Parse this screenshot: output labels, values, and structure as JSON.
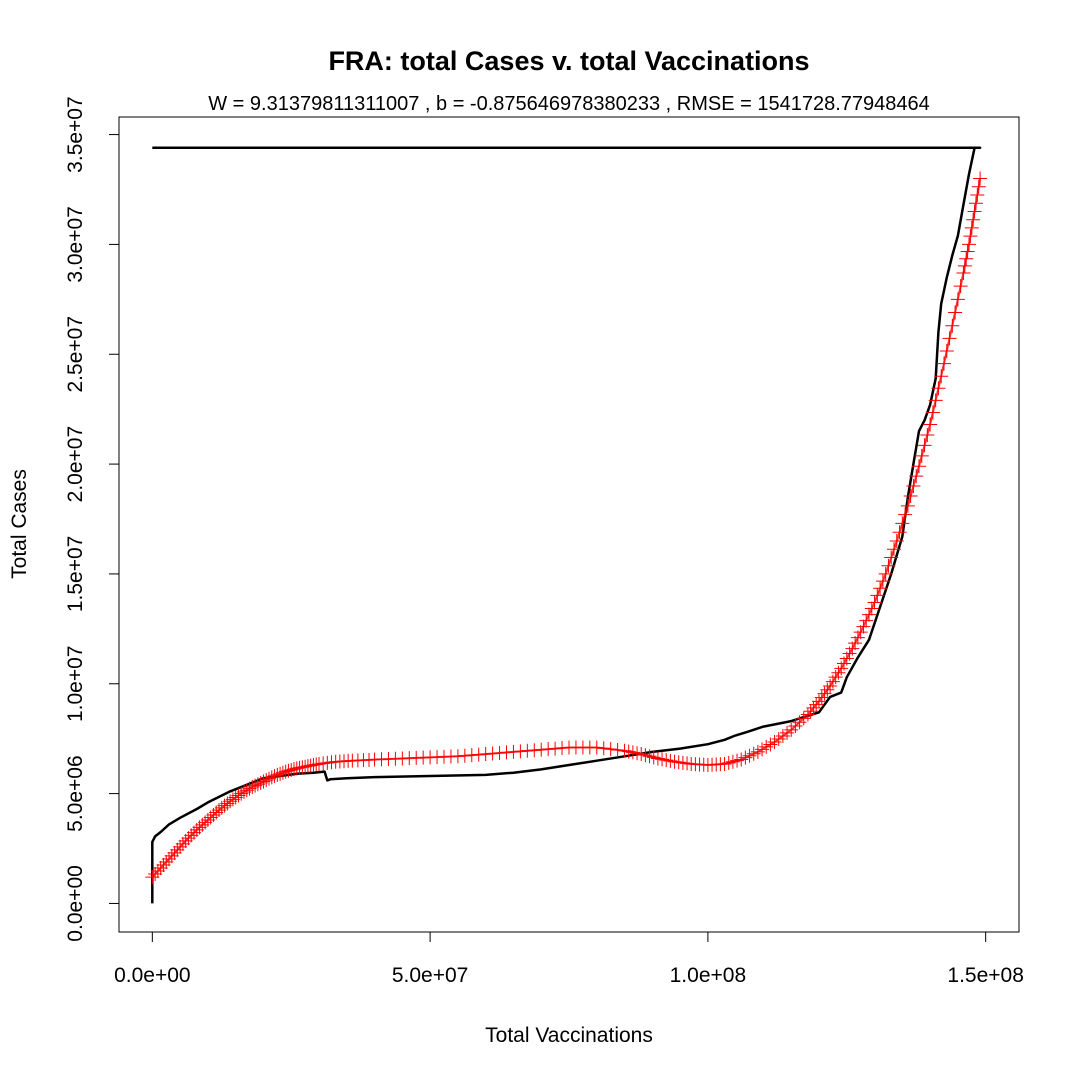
{
  "chart_data": {
    "type": "line",
    "title": "FRA: total Cases v. total Vaccinations",
    "subtitle": "W = 9.31379811311007 , b = -0.875646978380233 , RMSE = 1541728.77948464",
    "xlabel": "Total Vaccinations",
    "ylabel": "Total Cases",
    "xlim": [
      -6000000,
      156000000
    ],
    "ylim": [
      -1300000,
      35800000
    ],
    "x_ticks": [
      {
        "value": 0,
        "label": "0.0e+00"
      },
      {
        "value": 50000000,
        "label": "5.0e+07"
      },
      {
        "value": 100000000,
        "label": "1.0e+08"
      },
      {
        "value": 150000000,
        "label": "1.5e+08"
      }
    ],
    "y_ticks": [
      {
        "value": 0,
        "label": "0.0e+00"
      },
      {
        "value": 5000000,
        "label": "5.0e+06"
      },
      {
        "value": 10000000,
        "label": "1.0e+07"
      },
      {
        "value": 15000000,
        "label": "1.5e+07"
      },
      {
        "value": 20000000,
        "label": "2.0e+07"
      },
      {
        "value": 25000000,
        "label": "2.5e+07"
      },
      {
        "value": 30000000,
        "label": "3.0e+07"
      },
      {
        "value": 35000000,
        "label": "3.5e+07"
      }
    ],
    "grid": false,
    "legend": "none",
    "series": [
      {
        "color": "#000000",
        "style": "line",
        "x": [
          0,
          0,
          500000,
          1500000,
          3000000,
          5000000,
          8000000,
          10000000,
          14000000,
          17000000,
          20000000,
          23000000,
          26000000,
          29000000,
          31000000,
          31500000,
          32000000,
          35000000,
          40000000,
          50000000,
          60000000,
          65000000,
          70000000,
          75000000,
          80000000,
          85000000,
          90000000,
          95000000,
          100000000,
          103000000,
          105000000,
          107000000,
          110000000,
          115000000,
          120000000,
          122000000,
          124000000,
          125000000,
          127000000,
          129000000,
          131000000,
          133000000,
          135000000,
          136000000,
          137000000,
          138000000,
          139000000,
          140000000,
          141000000,
          141500000,
          142000000,
          143000000,
          144000000,
          145000000,
          146000000,
          147000000,
          148000000,
          149000000,
          0
        ],
        "y": [
          0,
          2800000,
          3050000,
          3250000,
          3600000,
          3900000,
          4300000,
          4600000,
          5100000,
          5400000,
          5700000,
          5800000,
          5900000,
          5950000,
          6000000,
          5600000,
          5650000,
          5700000,
          5750000,
          5800000,
          5850000,
          5950000,
          6100000,
          6300000,
          6500000,
          6700000,
          6900000,
          7050000,
          7250000,
          7450000,
          7650000,
          7800000,
          8050000,
          8300000,
          8700000,
          9400000,
          9600000,
          10300000,
          11200000,
          12000000,
          13500000,
          15000000,
          16700000,
          18500000,
          20000000,
          21500000,
          22000000,
          22700000,
          23900000,
          26000000,
          27300000,
          28500000,
          29500000,
          30400000,
          31800000,
          33200000,
          34400000,
          34400000,
          34400000
        ]
      },
      {
        "color": "#ff0000",
        "style": "markers",
        "marker": "plus",
        "x": [
          0,
          2000000,
          4000000,
          6000000,
          8000000,
          10000000,
          12000000,
          14000000,
          16000000,
          18000000,
          20000000,
          22000000,
          24000000,
          26000000,
          28000000,
          30000000,
          33000000,
          36000000,
          40000000,
          45000000,
          50000000,
          55000000,
          60000000,
          65000000,
          70000000,
          75000000,
          80000000,
          85000000,
          88000000,
          91000000,
          94000000,
          97000000,
          100000000,
          103000000,
          106000000,
          109000000,
          112000000,
          115000000,
          118000000,
          120000000,
          122000000,
          124000000,
          126000000,
          128000000,
          130000000,
          132000000,
          134000000,
          136000000,
          138000000,
          140000000,
          142000000,
          144000000,
          146000000,
          147000000,
          148000000,
          149000000
        ],
        "y": [
          1200000,
          1750000,
          2300000,
          2850000,
          3350000,
          3800000,
          4250000,
          4650000,
          5000000,
          5300000,
          5550000,
          5800000,
          6000000,
          6150000,
          6250000,
          6350000,
          6450000,
          6500000,
          6550000,
          6600000,
          6650000,
          6700000,
          6800000,
          6900000,
          7000000,
          7100000,
          7100000,
          6950000,
          6800000,
          6600000,
          6450000,
          6350000,
          6300000,
          6350000,
          6550000,
          6900000,
          7350000,
          7900000,
          8600000,
          9200000,
          9900000,
          10700000,
          11600000,
          12600000,
          13700000,
          15000000,
          16500000,
          18100000,
          19900000,
          21800000,
          24000000,
          26300000,
          28700000,
          30000000,
          31500000,
          33000000
        ]
      }
    ]
  }
}
